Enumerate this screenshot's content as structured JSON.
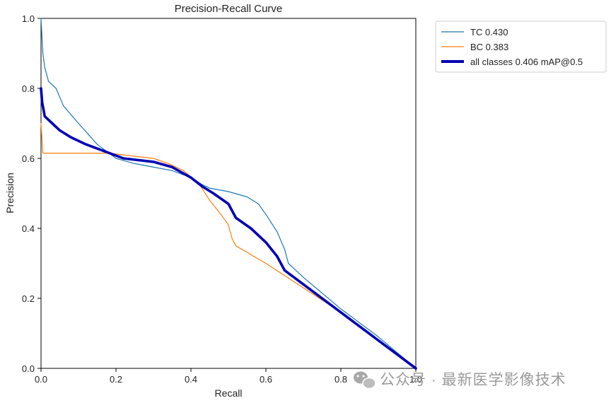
{
  "chart_data": {
    "type": "line",
    "title": "Precision-Recall Curve",
    "xlabel": "Recall",
    "ylabel": "Precision",
    "xlim": [
      0,
      1
    ],
    "ylim": [
      0,
      1
    ],
    "x_ticks": [
      "0.0",
      "0.2",
      "0.4",
      "0.6",
      "0.8",
      "1.0"
    ],
    "y_ticks": [
      "0.0",
      "0.2",
      "0.4",
      "0.6",
      "0.8",
      "1.0"
    ],
    "grid": false,
    "legend_position": "outside-top-right",
    "series": [
      {
        "name": "TC",
        "legend_label": "TC 0.430",
        "color": "#1f77b4",
        "weight": "thin",
        "points": [
          [
            0,
            1.0
          ],
          [
            0.005,
            0.9
          ],
          [
            0.01,
            0.86
          ],
          [
            0.02,
            0.82
          ],
          [
            0.04,
            0.8
          ],
          [
            0.06,
            0.75
          ],
          [
            0.1,
            0.7
          ],
          [
            0.15,
            0.64
          ],
          [
            0.2,
            0.6
          ],
          [
            0.25,
            0.585
          ],
          [
            0.3,
            0.575
          ],
          [
            0.35,
            0.565
          ],
          [
            0.4,
            0.545
          ],
          [
            0.43,
            0.525
          ],
          [
            0.45,
            0.515
          ],
          [
            0.5,
            0.505
          ],
          [
            0.55,
            0.49
          ],
          [
            0.58,
            0.47
          ],
          [
            0.6,
            0.44
          ],
          [
            0.63,
            0.39
          ],
          [
            0.65,
            0.34
          ],
          [
            0.66,
            0.3
          ],
          [
            0.7,
            0.26
          ],
          [
            0.8,
            0.17
          ],
          [
            0.9,
            0.09
          ],
          [
            1.0,
            0.0
          ]
        ]
      },
      {
        "name": "BC",
        "legend_label": "BC 0.383",
        "color": "#ff7f0e",
        "weight": "thin",
        "points": [
          [
            0,
            0.7
          ],
          [
            0.005,
            0.615
          ],
          [
            0.01,
            0.615
          ],
          [
            0.1,
            0.615
          ],
          [
            0.18,
            0.615
          ],
          [
            0.22,
            0.61
          ],
          [
            0.3,
            0.6
          ],
          [
            0.34,
            0.585
          ],
          [
            0.38,
            0.565
          ],
          [
            0.42,
            0.53
          ],
          [
            0.45,
            0.48
          ],
          [
            0.48,
            0.44
          ],
          [
            0.5,
            0.41
          ],
          [
            0.51,
            0.37
          ],
          [
            0.52,
            0.35
          ],
          [
            0.6,
            0.3
          ],
          [
            0.7,
            0.23
          ],
          [
            0.8,
            0.16
          ],
          [
            0.9,
            0.08
          ],
          [
            1.0,
            0.0
          ]
        ]
      },
      {
        "name": "all classes",
        "legend_label": "all classes 0.406 mAP@0.5",
        "color": "#0000b4",
        "weight": "thick",
        "points": [
          [
            0,
            0.8
          ],
          [
            0.003,
            0.76
          ],
          [
            0.01,
            0.72
          ],
          [
            0.03,
            0.7
          ],
          [
            0.05,
            0.68
          ],
          [
            0.08,
            0.66
          ],
          [
            0.12,
            0.64
          ],
          [
            0.17,
            0.62
          ],
          [
            0.22,
            0.6
          ],
          [
            0.3,
            0.59
          ],
          [
            0.35,
            0.575
          ],
          [
            0.4,
            0.545
          ],
          [
            0.43,
            0.52
          ],
          [
            0.46,
            0.5
          ],
          [
            0.5,
            0.47
          ],
          [
            0.52,
            0.43
          ],
          [
            0.56,
            0.4
          ],
          [
            0.6,
            0.36
          ],
          [
            0.63,
            0.32
          ],
          [
            0.65,
            0.28
          ],
          [
            0.7,
            0.24
          ],
          [
            0.8,
            0.16
          ],
          [
            0.9,
            0.08
          ],
          [
            1.0,
            0.0
          ]
        ]
      }
    ]
  },
  "watermark": {
    "icon": "wechat-icon",
    "text": "公众号 · 最新医学影像技术"
  }
}
